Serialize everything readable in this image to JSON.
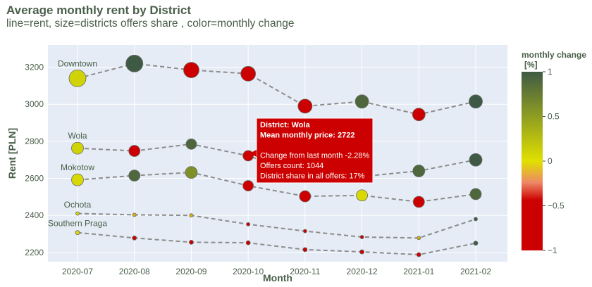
{
  "title": "Average monthly rent by District",
  "subtitle": "line=rent, size=districts offers share , color=monthly change",
  "colors": {
    "plot_bg": "#e5ecf6",
    "grid": "#ffffff",
    "line": "#8c8c8c",
    "text": "#4a5f4a",
    "tooltip_bg": "#cc0000",
    "colorscale": [
      "#cc0000",
      "#e0e000",
      "#3e5a44"
    ]
  },
  "chart_data": {
    "type": "scatter",
    "xlabel": "Month",
    "ylabel": "Rent [PLN]",
    "categories": [
      "2020-07",
      "2020-08",
      "2020-09",
      "2020-10",
      "2020-11",
      "2020-12",
      "2021-01",
      "2021-02"
    ],
    "ylim": [
      2150,
      3320
    ],
    "yticks": [
      2200,
      2400,
      2600,
      2800,
      3000,
      3200
    ],
    "grid": true,
    "colorbar": {
      "title": "monthly change [%]",
      "range": [
        -1,
        1
      ],
      "ticks": [
        1,
        0.5,
        0,
        -0.5,
        -1
      ],
      "tick_labels": [
        "1",
        "0.5",
        "0",
        "−0.5",
        "−1"
      ]
    },
    "series": [
      {
        "name": "Downtown",
        "y": [
          3140,
          3220,
          3185,
          3165,
          2990,
          3015,
          2945,
          3015
        ],
        "color_values": [
          0.1,
          1,
          -1,
          -1,
          -1,
          0.9,
          -1,
          1
        ],
        "sizes": [
          22,
          22,
          20,
          19,
          18,
          17,
          16,
          17
        ]
      },
      {
        "name": "Wola",
        "y": [
          2763,
          2748,
          2785,
          2722,
          2610,
          2610,
          2640,
          2700
        ],
        "color_values": [
          0.1,
          -1,
          0.9,
          -1,
          -1,
          0.9,
          0.9,
          1
        ],
        "sizes": [
          15,
          14,
          13,
          13,
          13,
          13,
          15,
          16
        ]
      },
      {
        "name": "Mokotow",
        "y": [
          2592,
          2615,
          2632,
          2560,
          2503,
          2508,
          2473,
          2515
        ],
        "color_values": [
          0.05,
          0.9,
          0.6,
          -1,
          -1,
          0.05,
          -1,
          0.9
        ],
        "sizes": [
          15,
          14,
          15,
          13,
          14,
          14,
          14,
          14
        ]
      },
      {
        "name": "Ochota",
        "y": [
          2410,
          2403,
          2400,
          2352,
          2315,
          2283,
          2278,
          2380
        ],
        "color_values": [
          0.05,
          -0.2,
          -0.2,
          -1,
          -1,
          -1,
          -0.2,
          1
        ],
        "sizes": [
          5,
          5,
          5,
          5,
          5,
          5,
          5,
          5
        ]
      },
      {
        "name": "Southern Praga",
        "y": [
          2307,
          2278,
          2255,
          2252,
          2215,
          2203,
          2188,
          2250
        ],
        "color_values": [
          0.05,
          -1,
          -1,
          -1,
          -1,
          -1,
          -1,
          1
        ],
        "sizes": [
          6,
          6,
          6,
          6,
          6,
          6,
          6,
          6
        ]
      }
    ],
    "tooltip": {
      "lines": [
        "District: Wola",
        "Mean monthly price: 2722",
        "",
        "Change from last month -2.28%",
        "Offers count: 1044",
        "District share in all offers: 17%"
      ]
    }
  }
}
